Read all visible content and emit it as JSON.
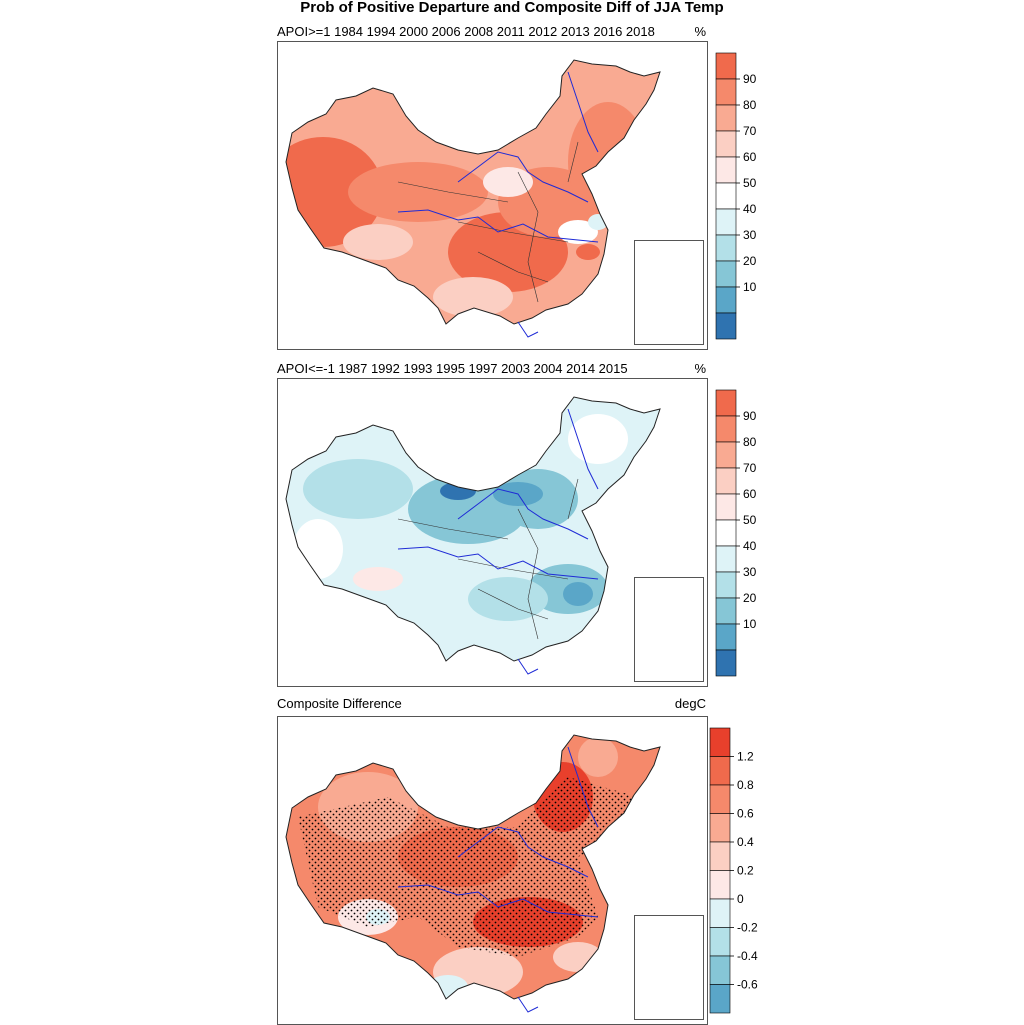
{
  "title": "Prob of Positive Departure and Composite Diff of JJA Temp",
  "chart_data": [
    {
      "type": "heatmap",
      "panel": "top",
      "title": "APOI>=1 1984 1994 2000 2006 2008 2011 2012 2013 2016 2018",
      "unit": "%",
      "colorbar_ticks": [
        "90",
        "80",
        "70",
        "60",
        "50",
        "40",
        "30",
        "20",
        "10"
      ],
      "colorbar_range": [
        0,
        100
      ],
      "colorbar_levels": [
        "#f06a4c",
        "#f5896b",
        "#f9aa92",
        "#fbcfc3",
        "#fde8e6",
        "#ffffff",
        "#def3f7",
        "#b3e0e8",
        "#86c6d6",
        "#5aa6c8",
        "#2f73b0"
      ],
      "dominant_level": "high positive probability (70-90 %) across most of China"
    },
    {
      "type": "heatmap",
      "panel": "middle",
      "title": "APOI<=-1 1987 1992 1993 1995 1997 2003 2004 2014 2015",
      "unit": "%",
      "colorbar_ticks": [
        "90",
        "80",
        "70",
        "60",
        "50",
        "40",
        "30",
        "20",
        "10"
      ],
      "colorbar_range": [
        0,
        100
      ],
      "colorbar_levels": [
        "#f06a4c",
        "#f5896b",
        "#f9aa92",
        "#fbcfc3",
        "#fde8e6",
        "#ffffff",
        "#def3f7",
        "#b3e0e8",
        "#86c6d6",
        "#5aa6c8",
        "#2f73b0"
      ],
      "dominant_level": "low positive probability (20-50 %) across most of China"
    },
    {
      "type": "heatmap",
      "panel": "bottom",
      "title": "Composite Difference",
      "unit": "degC",
      "colorbar_ticks": [
        "1.2",
        "0.8",
        "0.6",
        "0.4",
        "0.2",
        "0",
        "-0.2",
        "-0.4",
        "-0.6"
      ],
      "colorbar_range": [
        -0.8,
        1.4
      ],
      "colorbar_levels": [
        "#e8402c",
        "#f06a4c",
        "#f5896b",
        "#f9aa92",
        "#fbcfc3",
        "#fde8e6",
        "#def3f7",
        "#b3e0e8",
        "#86c6d6",
        "#5aa6c8"
      ],
      "dominant_level": "positive difference (0.4-1.0 degC) over most of China, stippled where significant"
    }
  ]
}
